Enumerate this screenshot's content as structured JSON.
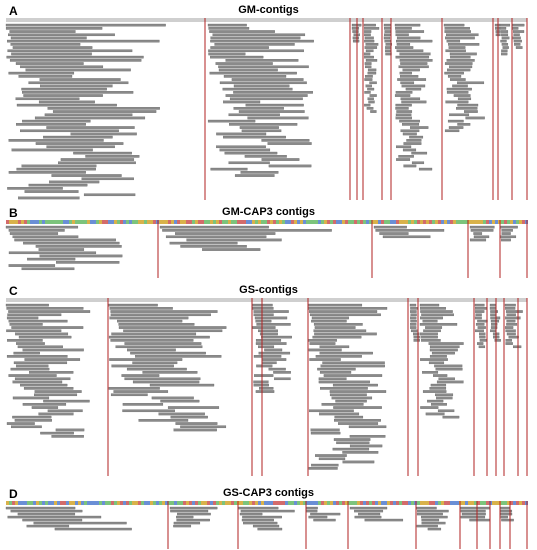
{
  "figure": {
    "panels": [
      {
        "letter": "A",
        "title": "GM-contigs"
      },
      {
        "letter": "B",
        "title": "GM-CAP3 contigs"
      },
      {
        "letter": "C",
        "title": "GS-contigs"
      },
      {
        "letter": "D",
        "title": "GS-CAP3 contigs"
      }
    ]
  },
  "colors": {
    "read": "#8a8a8a",
    "read_outline": "#5c5c5c",
    "boundary": "#b22222",
    "ruler": "#cfcfcf",
    "seq_a": "#7cc47c",
    "seq_c": "#6a8fd6",
    "seq_g": "#d9b24a",
    "seq_t": "#d36b6b"
  }
}
